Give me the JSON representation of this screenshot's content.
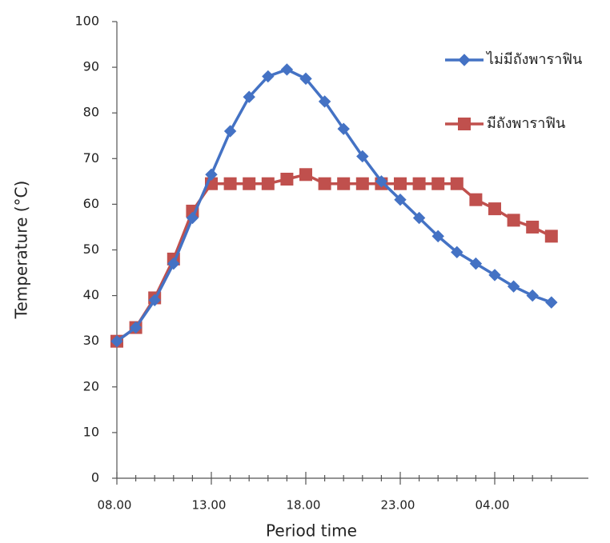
{
  "chart_data": {
    "type": "line",
    "x_label": "Period time",
    "y_label": "Temperature (°C)",
    "categories": [
      "08.00",
      null,
      null,
      null,
      null,
      "13.00",
      null,
      null,
      null,
      null,
      "18.00",
      null,
      null,
      null,
      null,
      "23.00",
      null,
      null,
      null,
      null,
      "04.00",
      null,
      null,
      null
    ],
    "series": [
      {
        "name": "ไม่มีถังพาราฟิน",
        "color": "#4472c4",
        "marker": "diamond",
        "values": [
          30,
          33,
          39,
          47,
          57,
          66.5,
          76,
          83.5,
          88,
          89.5,
          87.5,
          82.5,
          76.5,
          70.5,
          65,
          61,
          57,
          53,
          49.5,
          47,
          44.5,
          42,
          40,
          38.5
        ]
      },
      {
        "name": "มีถังพาราฟิน",
        "color": "#c0504d",
        "marker": "square",
        "values": [
          30,
          33,
          39.5,
          48,
          58.5,
          64.5,
          64.5,
          64.5,
          64.5,
          65.5,
          66.5,
          64.5,
          64.5,
          64.5,
          64.5,
          64.5,
          64.5,
          64.5,
          64.5,
          61,
          59,
          56.5,
          55,
          53
        ]
      }
    ],
    "ylim": [
      0,
      100
    ],
    "yticks": [
      0,
      10,
      20,
      30,
      40,
      50,
      60,
      70,
      80,
      90,
      100
    ],
    "grid": false,
    "legend": "right"
  }
}
